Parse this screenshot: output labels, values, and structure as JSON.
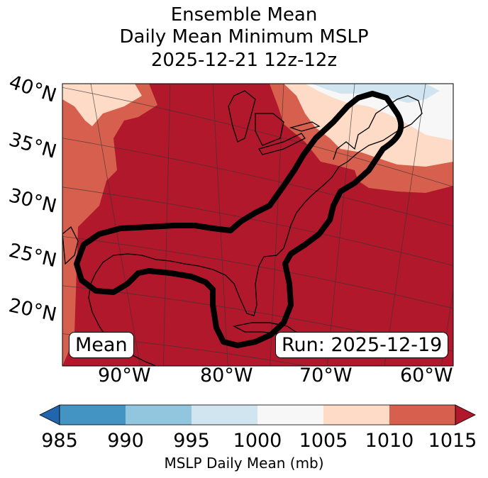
{
  "title": {
    "line1": "Ensemble Mean",
    "line2": "Daily Mean Minimum MSLP",
    "line3": "2025-12-21 12z-12z"
  },
  "map": {
    "lat_labels": [
      "40°N",
      "35°N",
      "30°N",
      "25°N",
      "20°N"
    ],
    "lon_labels": [
      "90°W",
      "80°W",
      "70°W",
      "60°W"
    ],
    "mean_tag": "Mean",
    "run_tag": "Run: 2025-12-19"
  },
  "colorbar": {
    "ticks": [
      "985",
      "990",
      "995",
      "1000",
      "1005",
      "1010",
      "1015"
    ],
    "label": "MSLP Daily Mean (mb)",
    "colors": {
      "below": "#2166ac",
      "b985_990": "#4393c3",
      "b990_995": "#92c5de",
      "b995_1000": "#d1e5f0",
      "b1000_1005": "#f7f7f7",
      "b1005_1010": "#fddbc7",
      "b1010_1015": "#d6604d",
      "above": "#b2182b"
    }
  }
}
